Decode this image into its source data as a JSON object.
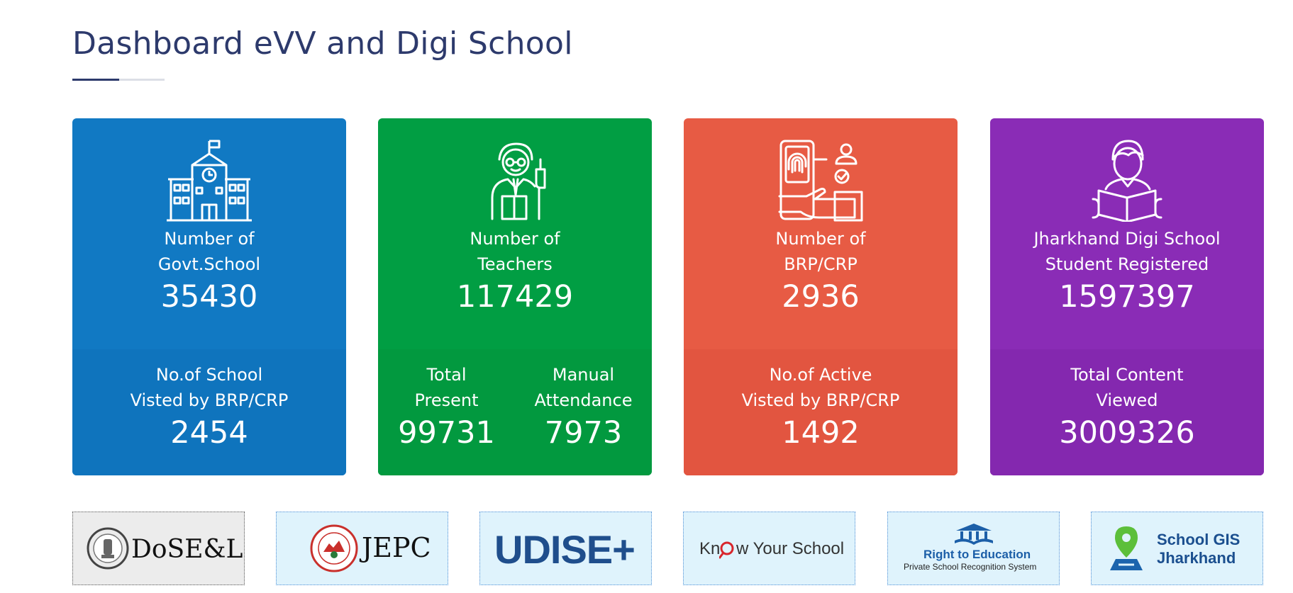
{
  "header": {
    "title": "Dashboard eVV and Digi School"
  },
  "cards": [
    {
      "icon": "school-building-icon",
      "color": "#1179c3",
      "label": "Number of\nGovt.School",
      "value": "35430",
      "bottom_label": "No.of School\nVisted by BRP/CRP",
      "bottom_value": "2454"
    },
    {
      "icon": "teacher-icon",
      "color": "#019e43",
      "label": "Number of\nTeachers",
      "value": "117429",
      "bottom_left_label": "Total\nPresent",
      "bottom_left_value": "99731",
      "bottom_right_label": "Manual\nAttendance",
      "bottom_right_value": "7973"
    },
    {
      "icon": "fingerprint-attendance-icon",
      "color": "#e75b44",
      "label": "Number of\nBRP/CRP",
      "value": "2936",
      "bottom_label": "No.of Active\nVisted by BRP/CRP",
      "bottom_value": "1492"
    },
    {
      "icon": "student-reading-icon",
      "color": "#8a2cb6",
      "label": "Jharkhand Digi School\nStudent Registered",
      "value": "1597397",
      "bottom_label": "Total Content\nViewed",
      "bottom_value": "3009326"
    }
  ],
  "logos": [
    {
      "name": "dosel",
      "text": "DoSE&L"
    },
    {
      "name": "jepc",
      "text": "JEPC"
    },
    {
      "name": "udise",
      "text": "UDISE+"
    },
    {
      "name": "know-your-school",
      "text_a": "Kn",
      "text_b": "w Your School"
    },
    {
      "name": "rte",
      "title": "Right to Education",
      "subtitle": "Private School Recognition System"
    },
    {
      "name": "school-gis",
      "line1": "School GIS",
      "line2": "Jharkhand"
    }
  ]
}
